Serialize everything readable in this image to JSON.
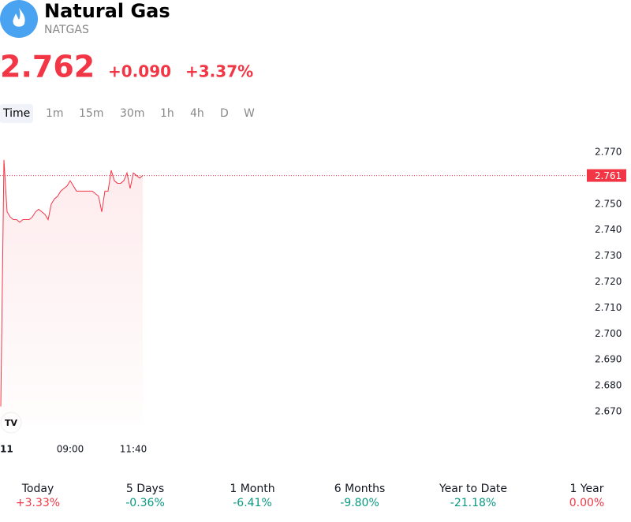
{
  "header": {
    "title": "Natural Gas",
    "symbol": "NATGAS",
    "price": "2.762",
    "change": "+0.090",
    "change_percent": "+3.37%"
  },
  "tabs": [
    "Time",
    "1m",
    "15m",
    "30m",
    "1h",
    "4h",
    "D",
    "W"
  ],
  "chart_data": {
    "type": "line",
    "categories": [
      null,
      null,
      "11",
      null,
      null,
      null,
      null,
      null,
      null,
      null,
      null,
      null,
      null,
      null,
      null,
      null,
      null,
      null,
      null,
      null,
      null,
      null,
      "09:00",
      null,
      null,
      null,
      null,
      null,
      null,
      null,
      null,
      null,
      null,
      null,
      null,
      null,
      null,
      null,
      null,
      null,
      null,
      null,
      "11:40",
      null,
      null,
      null
    ],
    "series": [
      {
        "color": "#f23645",
        "values": [
          2.672,
          2.767,
          2.747,
          2.745,
          2.744,
          2.744,
          2.743,
          2.744,
          2.744,
          2.744,
          2.745,
          2.747,
          2.748,
          2.747,
          2.746,
          2.744,
          2.75,
          2.752,
          2.753,
          2.755,
          2.756,
          2.757,
          2.759,
          2.757,
          2.755,
          2.755,
          2.755,
          2.755,
          2.755,
          2.755,
          2.754,
          2.753,
          2.747,
          2.755,
          2.755,
          2.763,
          2.759,
          2.758,
          2.758,
          2.759,
          2.762,
          2.756,
          2.762,
          2.761,
          2.76,
          2.761
        ]
      }
    ],
    "last_price": 2.761,
    "ylim": [
      2.665,
      2.775
    ],
    "yticks": [
      {
        "value": 2.77,
        "label": "2.770"
      },
      {
        "value": 2.75,
        "label": "2.750"
      },
      {
        "value": 2.74,
        "label": "2.740"
      },
      {
        "value": 2.73,
        "label": "2.730"
      },
      {
        "value": 2.72,
        "label": "2.720"
      },
      {
        "value": 2.71,
        "label": "2.710"
      },
      {
        "value": 2.7,
        "label": "2.700"
      },
      {
        "value": 2.69,
        "label": "2.690"
      },
      {
        "value": 2.68,
        "label": "2.680"
      },
      {
        "value": 2.67,
        "label": "2.670"
      }
    ]
  },
  "performance": [
    {
      "period": "Today",
      "value": "+3.33%",
      "color": "#f23645"
    },
    {
      "period": "5 Days",
      "value": "-0.36%",
      "color": "#089981"
    },
    {
      "period": "1 Month",
      "value": "-6.41%",
      "color": "#089981"
    },
    {
      "period": "6 Months",
      "value": "-9.80%",
      "color": "#089981"
    },
    {
      "period": "Year to Date",
      "value": "-21.18%",
      "color": "#089981"
    },
    {
      "period": "1 Year",
      "value": "0.00%",
      "color": "#f23645"
    }
  ]
}
